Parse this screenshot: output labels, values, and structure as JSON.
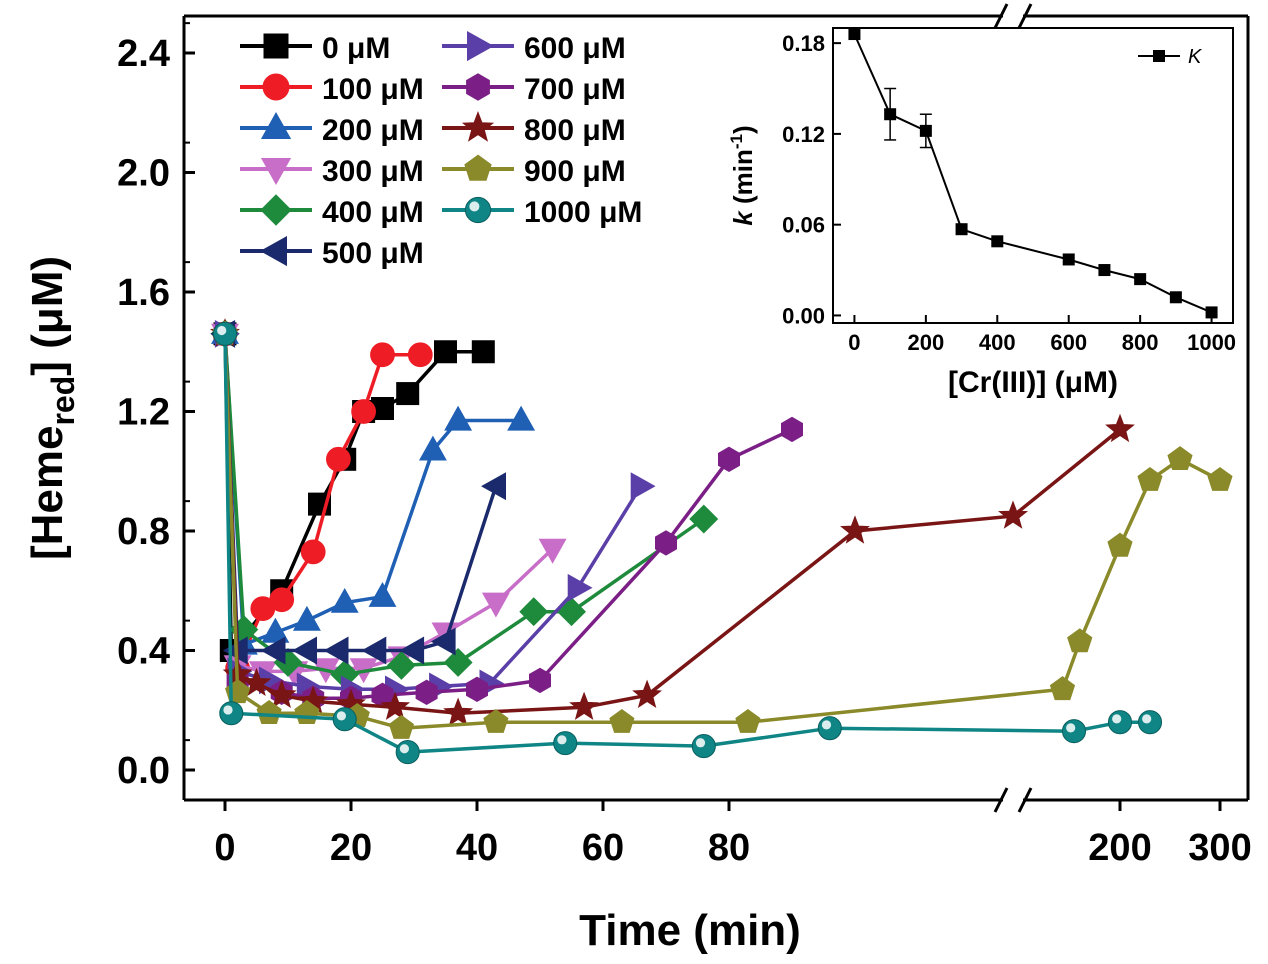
{
  "chart_data": [
    {
      "type": "line",
      "title": "",
      "xlabel": "Time (min)",
      "ylabel": "[Heme",
      "ylabel_sub": "red",
      "ylabel_suffix": "] (μM)",
      "ylim": [
        0,
        2.4
      ],
      "yticks": [
        "0.0",
        "0.4",
        "0.8",
        "1.2",
        "1.6",
        "2.0",
        "2.4"
      ],
      "ytick_values": [
        0,
        0.4,
        0.8,
        1.2,
        1.6,
        2.0,
        2.4
      ],
      "xaxis_note": "broken axis: linear 0-100 min, then break marks, then 200 and 300",
      "xticks": [
        "0",
        "20",
        "40",
        "60",
        "80",
        "200",
        "300"
      ],
      "xtick_values": [
        0,
        20,
        40,
        60,
        80,
        200,
        300
      ],
      "legend_position": "top-left, two columns",
      "series": [
        {
          "name": "0 μM",
          "color": "#000000",
          "marker": "square",
          "x": [
            0,
            1,
            9,
            15,
            19,
            22,
            25,
            29,
            35,
            41
          ],
          "y": [
            1.46,
            0.4,
            0.6,
            0.89,
            1.04,
            1.2,
            1.21,
            1.26,
            1.4,
            1.4
          ]
        },
        {
          "name": "100 μM",
          "color": "#ee1c25",
          "marker": "circle",
          "x": [
            0,
            2,
            6,
            9,
            14,
            18,
            22,
            25,
            31
          ],
          "y": [
            1.46,
            0.34,
            0.54,
            0.57,
            0.73,
            1.04,
            1.2,
            1.39,
            1.39
          ]
        },
        {
          "name": "200 μM",
          "color": "#1f5fb4",
          "marker": "triangle-up",
          "x": [
            0,
            3,
            8,
            13,
            19,
            25,
            33,
            37,
            47
          ],
          "y": [
            1.46,
            0.42,
            0.46,
            0.5,
            0.56,
            0.58,
            1.07,
            1.17,
            1.17
          ]
        },
        {
          "name": "300 μM",
          "color": "#c86ec8",
          "marker": "triangle-down",
          "x": [
            0,
            2,
            6,
            11,
            16,
            22,
            28,
            35,
            43,
            52
          ],
          "y": [
            1.46,
            0.35,
            0.33,
            0.33,
            0.34,
            0.34,
            0.38,
            0.46,
            0.56,
            0.74
          ]
        },
        {
          "name": "400 μM",
          "color": "#1e8a3c",
          "marker": "diamond",
          "x": [
            0,
            3,
            10,
            19,
            28,
            37,
            49,
            55,
            76
          ],
          "y": [
            1.46,
            0.47,
            0.36,
            0.32,
            0.35,
            0.36,
            0.53,
            0.53,
            0.84
          ]
        },
        {
          "name": "500 μM",
          "color": "#1a2a6c",
          "marker": "triangle-left",
          "x": [
            0,
            2,
            8,
            13,
            18,
            24,
            30,
            35,
            43
          ],
          "y": [
            1.46,
            0.4,
            0.4,
            0.4,
            0.4,
            0.4,
            0.4,
            0.43,
            0.95
          ]
        },
        {
          "name": "600 μM",
          "color": "#5b3fa8",
          "marker": "triangle-right",
          "x": [
            0,
            2,
            7,
            13,
            20,
            27,
            34,
            42,
            56,
            66
          ],
          "y": [
            1.46,
            0.33,
            0.3,
            0.28,
            0.27,
            0.27,
            0.28,
            0.29,
            0.61,
            0.95
          ]
        },
        {
          "name": "700 μM",
          "color": "#7b1f86",
          "marker": "hexagon",
          "x": [
            0,
            2,
            9,
            14,
            20,
            25,
            32,
            40,
            50,
            70,
            80,
            90
          ],
          "y": [
            1.46,
            0.3,
            0.26,
            0.24,
            0.24,
            0.25,
            0.26,
            0.27,
            0.3,
            0.76,
            1.04,
            1.14
          ]
        },
        {
          "name": "800 μM",
          "color": "#7a1515",
          "marker": "star",
          "x": [
            0,
            2,
            5,
            9,
            14,
            20,
            27,
            37,
            57,
            67,
            100,
            107,
            200
          ],
          "y": [
            1.46,
            0.32,
            0.29,
            0.25,
            0.23,
            0.22,
            0.21,
            0.19,
            0.21,
            0.25,
            0.8,
            0.85,
            1.14
          ]
        },
        {
          "name": "900 μM",
          "color": "#8a8a2a",
          "marker": "pentagon",
          "x": [
            0,
            2,
            7,
            13,
            21,
            28,
            43,
            63,
            83,
            150,
            165,
            200,
            230,
            260,
            300
          ],
          "y": [
            1.46,
            0.26,
            0.19,
            0.19,
            0.18,
            0.14,
            0.16,
            0.16,
            0.16,
            0.27,
            0.43,
            0.75,
            0.97,
            1.04,
            0.97
          ]
        },
        {
          "name": "1000 μM",
          "color": "#0f8585",
          "marker": "sphere",
          "x": [
            0,
            1,
            19,
            29,
            54,
            76,
            96,
            160,
            200,
            230
          ],
          "y": [
            1.46,
            0.19,
            0.17,
            0.06,
            0.09,
            0.08,
            0.14,
            0.13,
            0.16,
            0.16
          ]
        }
      ]
    },
    {
      "type": "line",
      "title": "",
      "inset": true,
      "xlabel": "[Cr(III)] (μM)",
      "ylabel_italic": "k",
      "ylabel_rest": " (min",
      "ylabel_sup": "-1",
      "ylabel_close": ")",
      "xlim": [
        -60,
        1060
      ],
      "ylim": [
        -0.005,
        0.19
      ],
      "xticks": [
        "0",
        "200",
        "400",
        "600",
        "800",
        "1000"
      ],
      "xtick_values": [
        0,
        200,
        400,
        600,
        800,
        1000
      ],
      "yticks": [
        "0.00",
        "0.06",
        "0.12",
        "0.18"
      ],
      "ytick_values": [
        0,
        0.06,
        0.12,
        0.18
      ],
      "legend_position": "top-right",
      "series": [
        {
          "name": "K",
          "color": "#000000",
          "marker": "square",
          "x": [
            0,
            100,
            200,
            300,
            400,
            600,
            700,
            800,
            900,
            1000
          ],
          "y": [
            0.186,
            0.133,
            0.122,
            0.057,
            0.049,
            0.037,
            0.03,
            0.024,
            0.012,
            0.002
          ],
          "error": [
            0,
            0.017,
            0.011,
            0,
            0,
            0,
            0,
            0,
            0,
            0
          ]
        }
      ]
    }
  ]
}
